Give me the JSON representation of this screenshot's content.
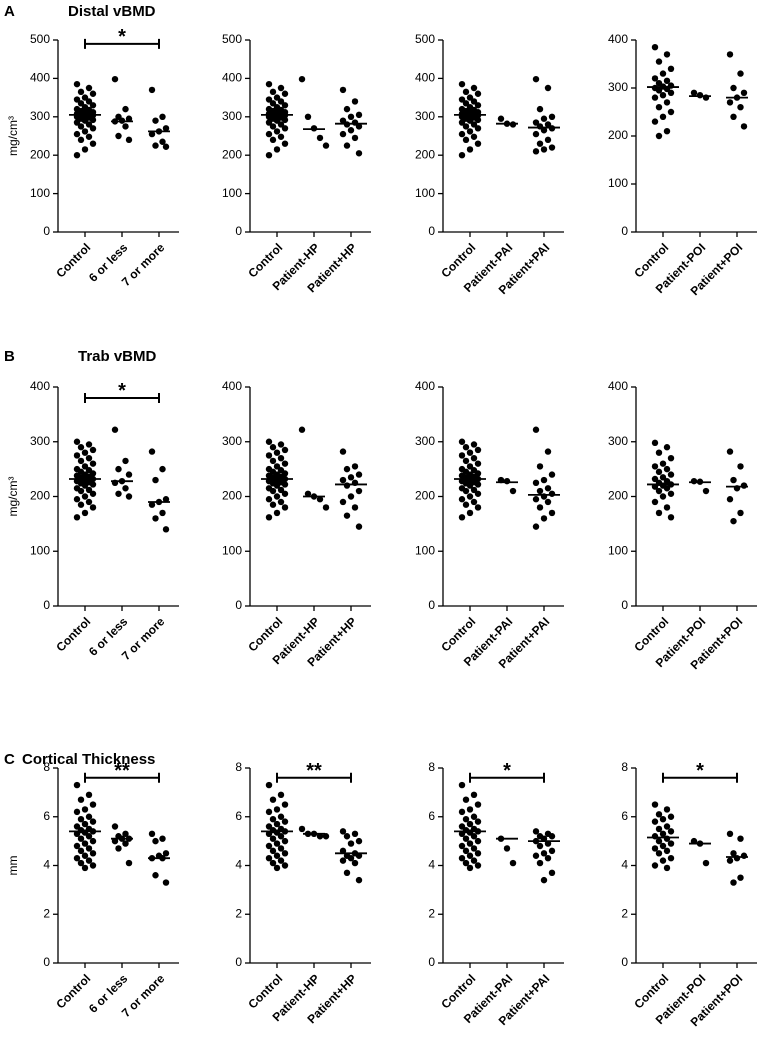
{
  "chart_data": [
    {
      "type": "dot",
      "panel": "A",
      "title": "Distal vBMD",
      "ylabel": "mg/cm³",
      "categories": [
        "Control",
        "6 or less",
        "7 or more"
      ],
      "values": [
        [
          385,
          375,
          365,
          360,
          350,
          345,
          340,
          335,
          330,
          325,
          320,
          318,
          315,
          312,
          310,
          308,
          306,
          305,
          304,
          302,
          300,
          298,
          295,
          292,
          290,
          285,
          280,
          275,
          270,
          262,
          255,
          248,
          240,
          230,
          215,
          200
        ],
        [
          398,
          320,
          300,
          295,
          290,
          288,
          275,
          250,
          240
        ],
        [
          370,
          300,
          290,
          270,
          262,
          255,
          235,
          225,
          222
        ]
      ],
      "medians": [
        305,
        288,
        262
      ],
      "ylim": [
        0,
        500
      ],
      "yticks": [
        0,
        100,
        200,
        300,
        400,
        500
      ],
      "bracket": {
        "label": "*",
        "y": 490,
        "span": [
          0,
          2
        ]
      }
    },
    {
      "type": "dot",
      "categories": [
        "Control",
        "Patient-HP",
        "Patient+HP"
      ],
      "values": [
        [
          385,
          375,
          365,
          360,
          350,
          345,
          340,
          335,
          330,
          325,
          320,
          318,
          315,
          312,
          310,
          308,
          306,
          305,
          304,
          302,
          300,
          298,
          295,
          292,
          290,
          285,
          280,
          275,
          270,
          262,
          255,
          248,
          240,
          230,
          215,
          200
        ],
        [
          398,
          300,
          270,
          245,
          225
        ],
        [
          370,
          340,
          320,
          305,
          300,
          290,
          285,
          280,
          275,
          265,
          255,
          245,
          225,
          205
        ]
      ],
      "medians": [
        305,
        268,
        282
      ],
      "ylim": [
        0,
        500
      ],
      "yticks": [
        0,
        100,
        200,
        300,
        400,
        500
      ]
    },
    {
      "type": "dot",
      "categories": [
        "Control",
        "Patient-PAI",
        "Patient+PAI"
      ],
      "values": [
        [
          385,
          375,
          365,
          360,
          350,
          345,
          340,
          335,
          330,
          325,
          320,
          318,
          315,
          312,
          310,
          308,
          306,
          305,
          304,
          302,
          300,
          298,
          295,
          292,
          290,
          285,
          280,
          275,
          270,
          262,
          255,
          248,
          240,
          230,
          215,
          200
        ],
        [
          295,
          282,
          280
        ],
        [
          398,
          375,
          320,
          300,
          295,
          285,
          280,
          275,
          270,
          265,
          255,
          240,
          230,
          220,
          215,
          210
        ]
      ],
      "medians": [
        305,
        282,
        272
      ],
      "ylim": [
        0,
        500
      ],
      "yticks": [
        0,
        100,
        200,
        300,
        400,
        500
      ]
    },
    {
      "type": "dot",
      "categories": [
        "Control",
        "Patient-POI",
        "Patient+POI"
      ],
      "values": [
        [
          385,
          370,
          355,
          340,
          330,
          320,
          315,
          310,
          305,
          303,
          300,
          298,
          295,
          290,
          285,
          280,
          270,
          260,
          250,
          240,
          230,
          210,
          200
        ],
        [
          290,
          285,
          280
        ],
        [
          370,
          330,
          300,
          290,
          280,
          270,
          260,
          240,
          220
        ]
      ],
      "medians": [
        302,
        283,
        280
      ],
      "ylim": [
        0,
        400
      ],
      "yticks": [
        0,
        100,
        200,
        300,
        400
      ]
    },
    {
      "type": "dot",
      "panel": "B",
      "title": "Trab vBMD",
      "ylabel": "mg/cm³",
      "categories": [
        "Control",
        "6 or less",
        "7 or more"
      ],
      "values": [
        [
          300,
          295,
          290,
          285,
          280,
          275,
          270,
          265,
          260,
          255,
          250,
          248,
          245,
          242,
          240,
          238,
          236,
          234,
          232,
          230,
          228,
          226,
          224,
          222,
          220,
          215,
          212,
          210,
          205,
          200,
          195,
          190,
          185,
          180,
          170,
          162
        ],
        [
          322,
          265,
          250,
          240,
          228,
          225,
          215,
          205,
          200
        ],
        [
          282,
          250,
          230,
          195,
          190,
          185,
          170,
          160,
          140
        ]
      ],
      "medians": [
        232,
        228,
        190
      ],
      "ylim": [
        0,
        400
      ],
      "yticks": [
        0,
        100,
        200,
        300,
        400
      ],
      "bracket": {
        "label": "*",
        "y": 380,
        "span": [
          0,
          2
        ]
      }
    },
    {
      "type": "dot",
      "categories": [
        "Control",
        "Patient-HP",
        "Patient+HP"
      ],
      "values": [
        [
          300,
          295,
          290,
          285,
          280,
          275,
          270,
          265,
          260,
          255,
          250,
          248,
          245,
          242,
          240,
          238,
          236,
          234,
          232,
          230,
          228,
          226,
          224,
          222,
          220,
          215,
          212,
          210,
          205,
          200,
          195,
          190,
          185,
          180,
          170,
          162
        ],
        [
          322,
          205,
          200,
          195,
          180
        ],
        [
          282,
          255,
          250,
          240,
          235,
          230,
          225,
          220,
          210,
          200,
          190,
          180,
          165,
          145
        ]
      ],
      "medians": [
        232,
        200,
        222
      ],
      "ylim": [
        0,
        400
      ],
      "yticks": [
        0,
        100,
        200,
        300,
        400
      ]
    },
    {
      "type": "dot",
      "categories": [
        "Control",
        "Patient-PAI",
        "Patient+PAI"
      ],
      "values": [
        [
          300,
          295,
          290,
          285,
          280,
          275,
          270,
          265,
          260,
          255,
          250,
          248,
          245,
          242,
          240,
          238,
          236,
          234,
          232,
          230,
          228,
          226,
          224,
          222,
          220,
          215,
          212,
          210,
          205,
          200,
          195,
          190,
          185,
          180,
          170,
          162
        ],
        [
          230,
          228,
          210
        ],
        [
          322,
          282,
          255,
          240,
          230,
          225,
          215,
          210,
          205,
          200,
          195,
          190,
          180,
          170,
          160,
          145
        ]
      ],
      "medians": [
        232,
        226,
        203
      ],
      "ylim": [
        0,
        400
      ],
      "yticks": [
        0,
        100,
        200,
        300,
        400
      ]
    },
    {
      "type": "dot",
      "categories": [
        "Control",
        "Patient-POI",
        "Patient+POI"
      ],
      "values": [
        [
          298,
          290,
          280,
          270,
          260,
          255,
          250,
          245,
          240,
          235,
          232,
          228,
          225,
          222,
          220,
          218,
          215,
          210,
          205,
          200,
          190,
          180,
          170,
          162
        ],
        [
          228,
          227,
          210
        ],
        [
          282,
          255,
          230,
          220,
          215,
          195,
          170,
          155
        ]
      ],
      "medians": [
        222,
        226,
        218
      ],
      "ylim": [
        0,
        400
      ],
      "yticks": [
        0,
        100,
        200,
        300,
        400
      ]
    },
    {
      "type": "dot",
      "panel": "C",
      "title": "Cortical Thickness",
      "ylabel": "mm",
      "categories": [
        "Control",
        "6 or less",
        "7 or more"
      ],
      "values": [
        [
          7.3,
          6.9,
          6.7,
          6.5,
          6.3,
          6.2,
          6.0,
          5.9,
          5.8,
          5.7,
          5.6,
          5.5,
          5.45,
          5.4,
          5.35,
          5.3,
          5.2,
          5.1,
          5.0,
          4.9,
          4.8,
          4.7,
          4.6,
          4.5,
          4.4,
          4.3,
          4.2,
          4.1,
          4.0,
          3.9
        ],
        [
          5.6,
          5.3,
          5.2,
          5.1,
          5.1,
          5.0,
          4.9,
          4.7,
          4.1
        ],
        [
          5.3,
          5.1,
          5.0,
          4.5,
          4.4,
          4.3,
          4.3,
          3.6,
          3.3
        ]
      ],
      "medians": [
        5.4,
        5.1,
        4.3
      ],
      "ylim": [
        0,
        8
      ],
      "yticks": [
        0,
        2,
        4,
        6,
        8
      ],
      "bracket": {
        "label": "**",
        "y": 7.6,
        "span": [
          0,
          2
        ]
      }
    },
    {
      "type": "dot",
      "categories": [
        "Control",
        "Patient-HP",
        "Patient+HP"
      ],
      "values": [
        [
          7.3,
          6.9,
          6.7,
          6.5,
          6.3,
          6.2,
          6.0,
          5.9,
          5.8,
          5.7,
          5.6,
          5.5,
          5.45,
          5.4,
          5.35,
          5.3,
          5.2,
          5.1,
          5.0,
          4.9,
          4.8,
          4.7,
          4.6,
          4.5,
          4.4,
          4.3,
          4.2,
          4.1,
          4.0,
          3.9
        ],
        [
          5.5,
          5.3,
          5.3,
          5.2,
          5.2
        ],
        [
          5.4,
          5.3,
          5.2,
          5.0,
          4.9,
          4.6,
          4.5,
          4.4,
          4.4,
          4.3,
          4.2,
          4.1,
          3.7,
          3.4
        ]
      ],
      "medians": [
        5.4,
        5.3,
        4.5
      ],
      "ylim": [
        0,
        8
      ],
      "yticks": [
        0,
        2,
        4,
        6,
        8
      ],
      "bracket": {
        "label": "**",
        "y": 7.6,
        "span": [
          0,
          2
        ]
      }
    },
    {
      "type": "dot",
      "categories": [
        "Control",
        "Patient-PAI",
        "Patient+PAI"
      ],
      "values": [
        [
          7.3,
          6.9,
          6.7,
          6.5,
          6.3,
          6.2,
          6.0,
          5.9,
          5.8,
          5.7,
          5.6,
          5.5,
          5.45,
          5.4,
          5.35,
          5.3,
          5.2,
          5.1,
          5.0,
          4.9,
          4.8,
          4.7,
          4.6,
          4.5,
          4.4,
          4.3,
          4.2,
          4.1,
          4.0,
          3.9
        ],
        [
          5.1,
          4.7,
          4.1
        ],
        [
          5.4,
          5.3,
          5.2,
          5.2,
          5.1,
          5.0,
          4.9,
          4.8,
          4.6,
          4.5,
          4.4,
          4.3,
          4.1,
          3.7,
          3.4
        ]
      ],
      "medians": [
        5.4,
        5.1,
        5.0
      ],
      "ylim": [
        0,
        8
      ],
      "yticks": [
        0,
        2,
        4,
        6,
        8
      ],
      "bracket": {
        "label": "*",
        "y": 7.6,
        "span": [
          0,
          2
        ]
      }
    },
    {
      "type": "dot",
      "categories": [
        "Control",
        "Patient-POI",
        "Patient+POI"
      ],
      "values": [
        [
          6.5,
          6.3,
          6.1,
          6.0,
          5.9,
          5.8,
          5.6,
          5.5,
          5.4,
          5.3,
          5.2,
          5.1,
          5.0,
          4.9,
          4.8,
          4.7,
          4.6,
          4.5,
          4.3,
          4.2,
          4.0,
          3.9
        ],
        [
          5.0,
          4.9,
          4.1
        ],
        [
          5.3,
          5.1,
          4.5,
          4.4,
          4.3,
          4.2,
          3.5,
          3.3
        ]
      ],
      "medians": [
        5.15,
        4.9,
        4.35
      ],
      "ylim": [
        0,
        8
      ],
      "yticks": [
        0,
        2,
        4,
        6,
        8
      ],
      "bracket": {
        "label": "*",
        "y": 7.6,
        "span": [
          0,
          2
        ]
      }
    }
  ]
}
